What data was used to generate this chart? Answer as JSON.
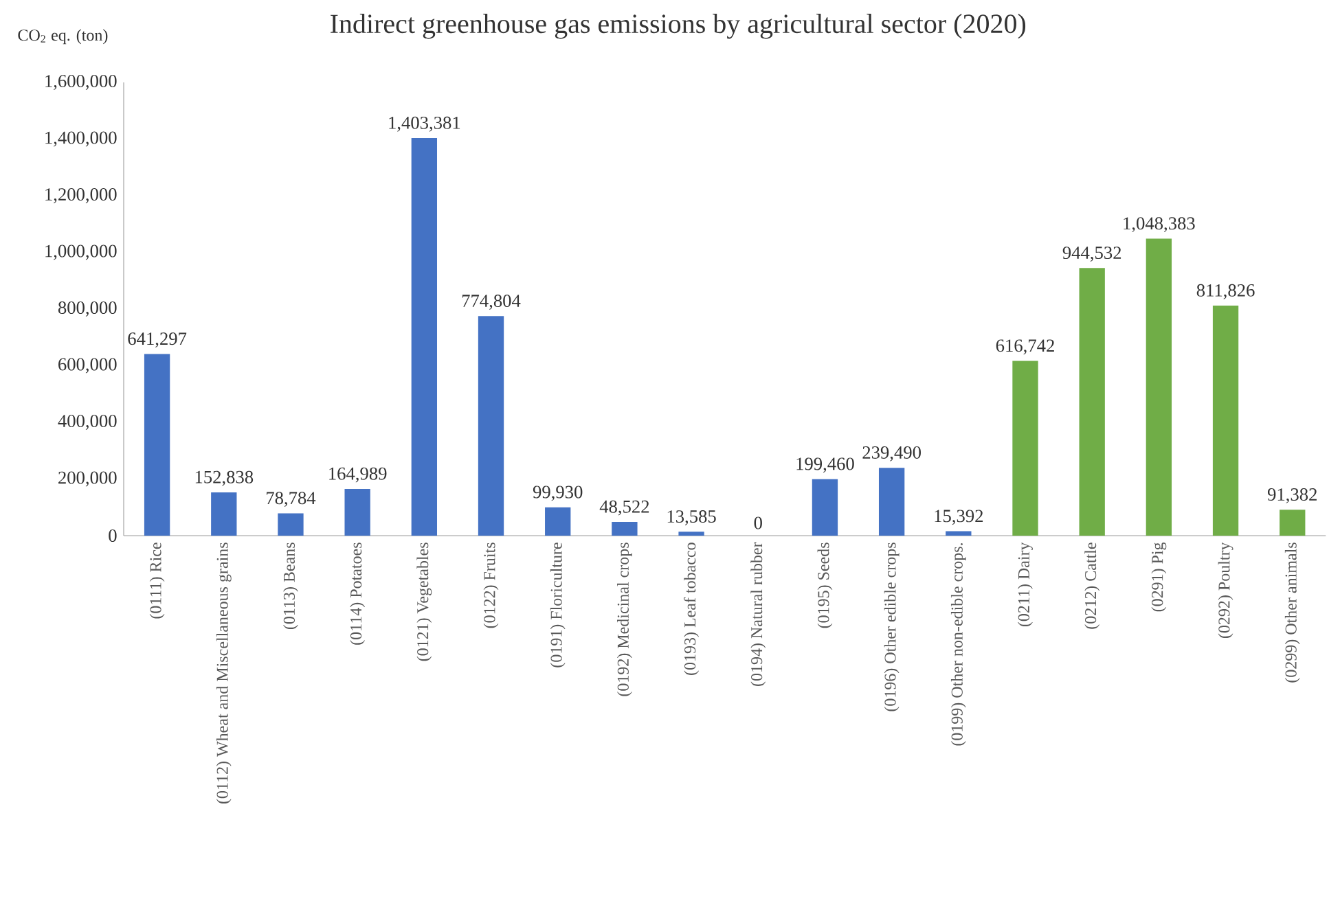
{
  "chart_data": {
    "type": "bar",
    "title": "Indirect greenhouse gas emissions by agricultural sector (2020)",
    "ylabel": "CO$_{2}$ eq. (ton)",
    "categories": [
      "(0111) Rice",
      "(0112) Wheat and Miscellaneous grains",
      "(0113) Beans",
      "(0114) Potatoes",
      "(0121) Vegetables",
      "(0122) Fruits",
      "(0191) Floriculture",
      "(0192) Medicinal crops",
      "(0193) Leaf tobacco",
      "(0194) Natural rubber",
      "(0195) Seeds",
      "(0196) Other edible crops",
      "(0199) Other non-edible crops.",
      "(0211) Dairy",
      "(0212) Cattle",
      "(0291) Pig",
      "(0292) Poultry",
      "(0299) Other animals"
    ],
    "values": [
      641297,
      152838,
      78784,
      164989,
      1403381,
      774804,
      99930,
      48522,
      13585,
      0,
      199460,
      239490,
      15392,
      616742,
      944532,
      1048383,
      811826,
      91382
    ],
    "value_labels": [
      "641,297",
      "152,838",
      "78,784",
      "164,989",
      "1,403,381",
      "774,804",
      "99,930",
      "48,522",
      "13,585",
      "0",
      "199,460",
      "239,490",
      "15,392",
      "616,742",
      "944,532",
      "1,048,383",
      "811,826",
      "91,382"
    ],
    "colors": [
      "#4472c4",
      "#4472c4",
      "#4472c4",
      "#4472c4",
      "#4472c4",
      "#4472c4",
      "#4472c4",
      "#4472c4",
      "#4472c4",
      "#4472c4",
      "#4472c4",
      "#4472c4",
      "#4472c4",
      "#70ad47",
      "#70ad47",
      "#70ad47",
      "#70ad47",
      "#70ad47"
    ],
    "ylim": [
      0,
      1600000
    ],
    "yticks": [
      0,
      {
        "value": 200000,
        "label": "200,000"
      },
      {
        "value": 400000,
        "label": "400,000"
      },
      {
        "value": 600000,
        "label": "600,000"
      },
      {
        "value": 800000,
        "label": "800,000"
      },
      {
        "value": 1000000,
        "label": "1,000,000"
      },
      {
        "value": 1200000,
        "label": "1,200,000"
      },
      {
        "value": 1400000,
        "label": "1,400,000"
      },
      {
        "value": 1600000,
        "label": "1,600,000"
      }
    ]
  }
}
